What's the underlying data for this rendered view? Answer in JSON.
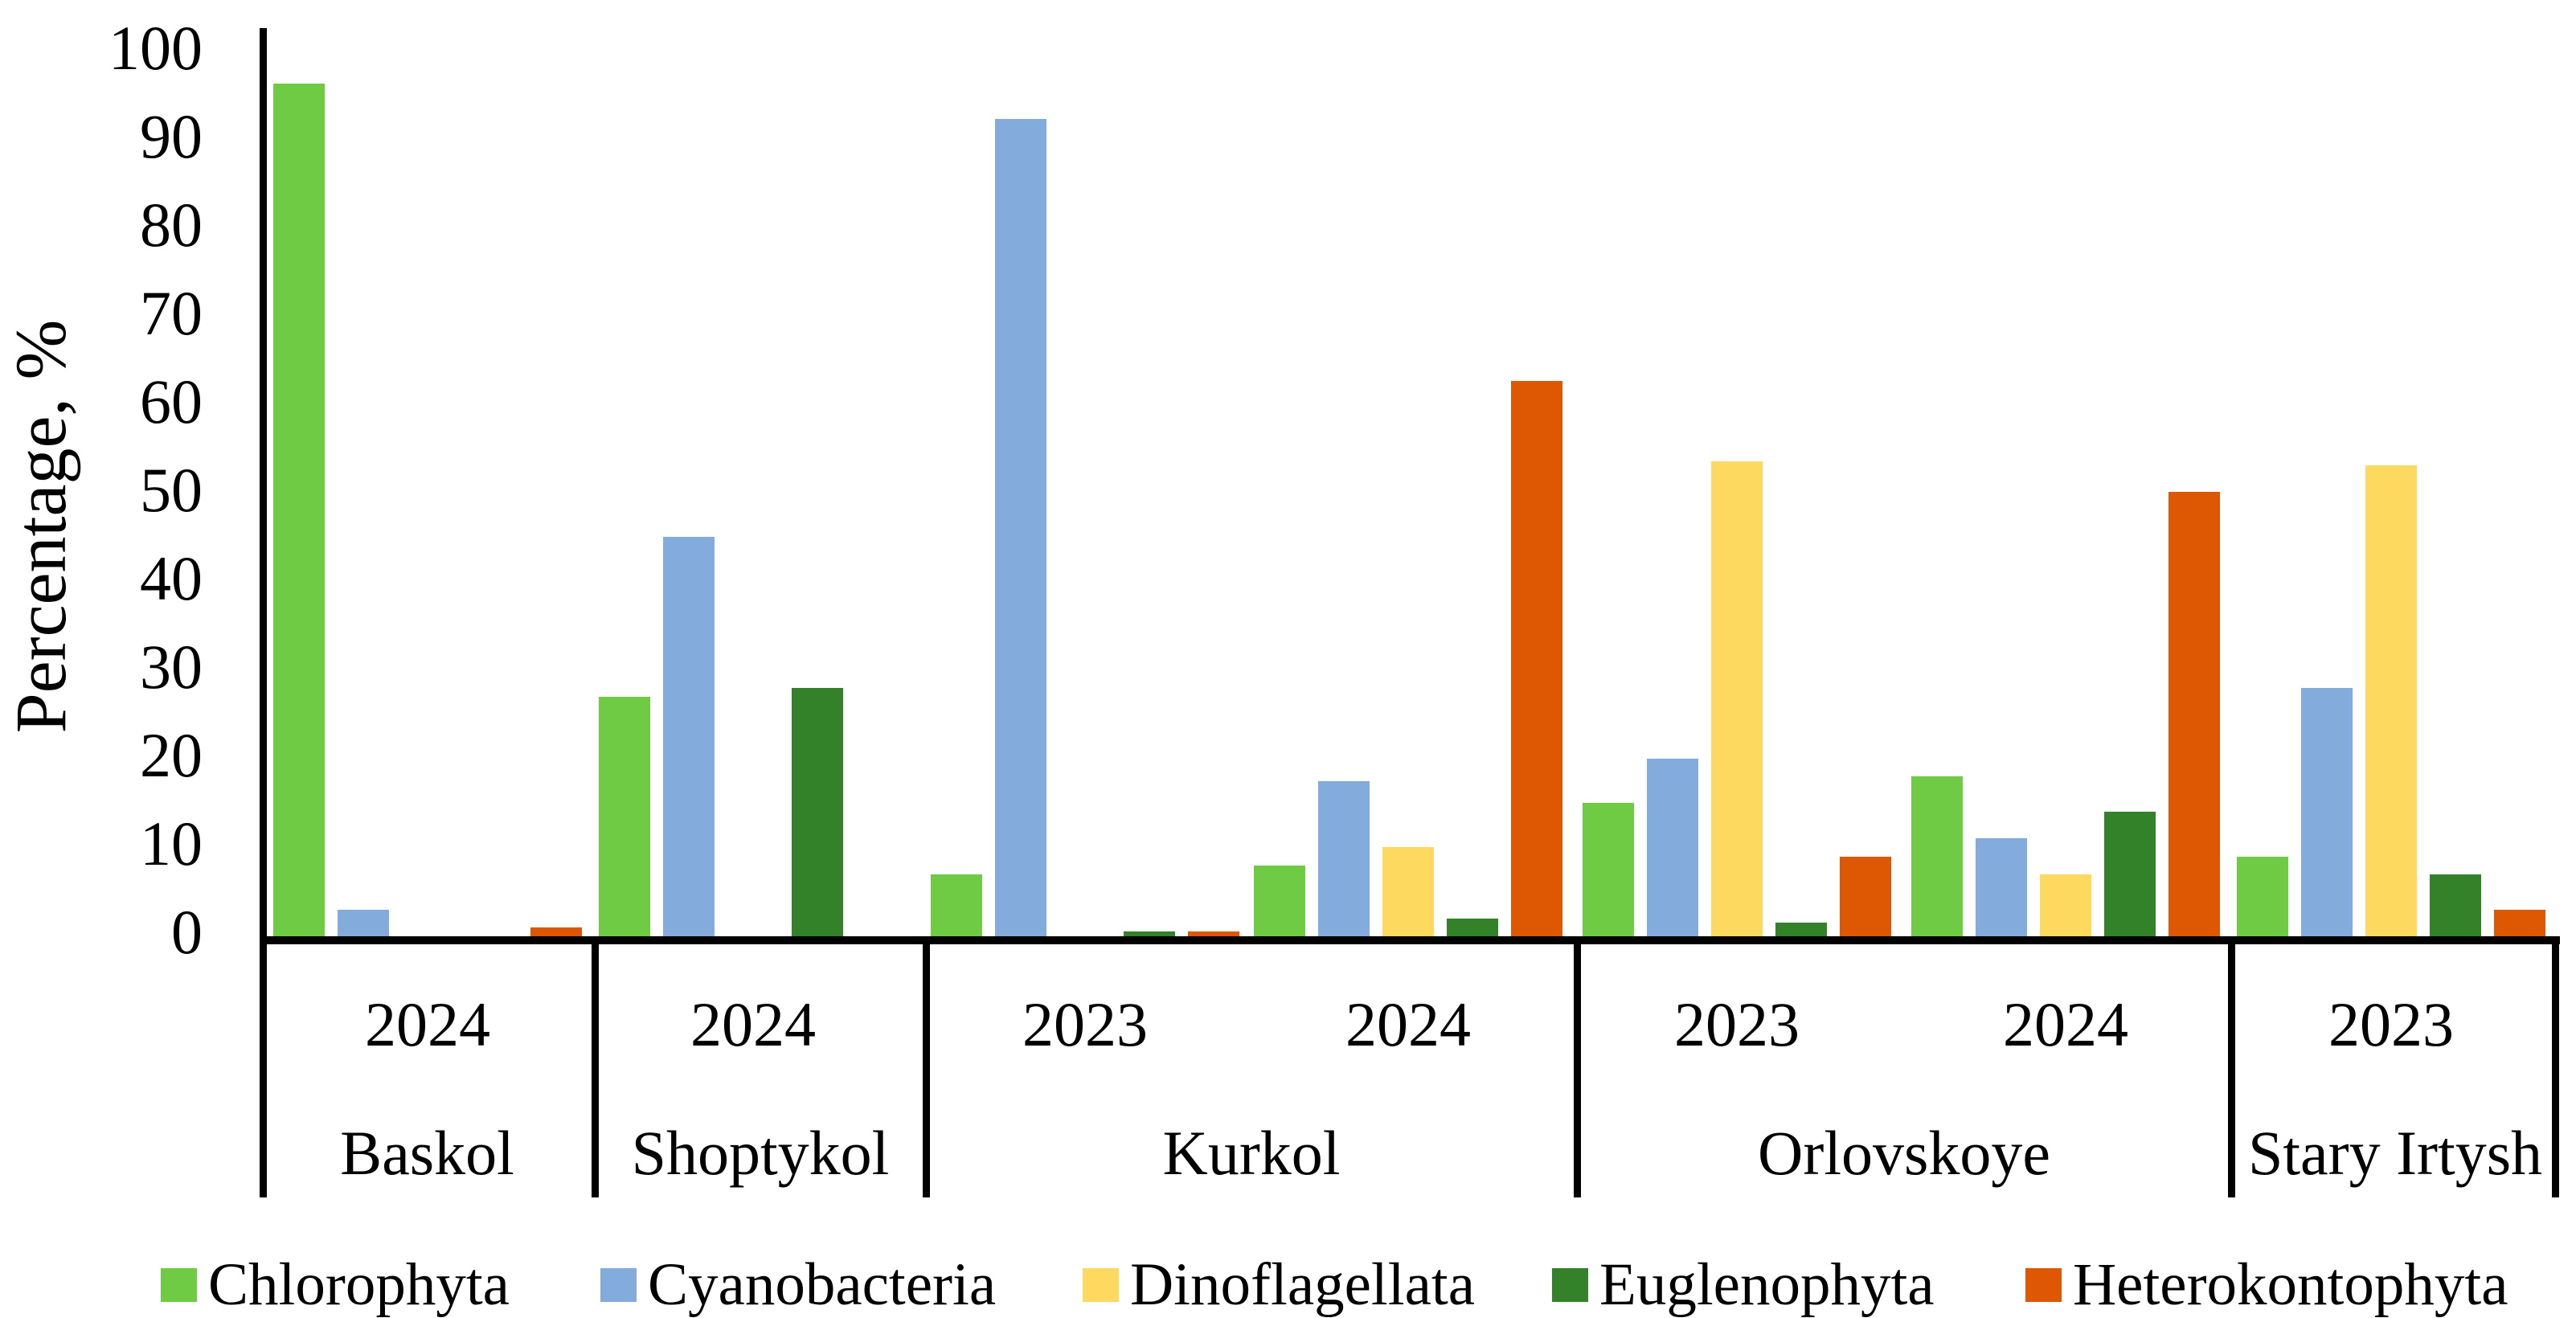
{
  "chart_data": {
    "type": "bar",
    "title": "",
    "ylabel": "Percentage, %",
    "ylim": [
      0,
      100
    ],
    "y_ticks": [
      "0",
      "10",
      "20",
      "30",
      "40",
      "50",
      "60",
      "70",
      "80",
      "90",
      "100"
    ],
    "grid": false,
    "legend_position": "bottom",
    "columns": [
      {
        "lake": "Baskol",
        "year": "2024"
      },
      {
        "lake": "Shoptykol",
        "year": "2024"
      },
      {
        "lake": "Kurkol",
        "year": "2023"
      },
      {
        "lake": "Kurkol",
        "year": "2024"
      },
      {
        "lake": "Orlovskoye",
        "year": "2023"
      },
      {
        "lake": "Orlovskoye",
        "year": "2024"
      },
      {
        "lake": "Stary Irtysh",
        "year": "2023"
      }
    ],
    "lakes": [
      "Baskol",
      "Shoptykol",
      "Kurkol",
      "Orlovskoye",
      "Stary Irtysh"
    ],
    "series": [
      {
        "name": "Chlorophyta",
        "color": "#6FCB44",
        "values": [
          96,
          27,
          7,
          8,
          15,
          18,
          9
        ]
      },
      {
        "name": "Cyanobacteria",
        "color": "#83ACDD",
        "values": [
          3,
          45,
          92,
          17.5,
          20,
          11,
          28
        ]
      },
      {
        "name": "Dinoflagellata",
        "color": "#FED95F",
        "values": [
          0,
          0,
          0,
          10,
          53.5,
          7,
          53
        ]
      },
      {
        "name": "Euglenophyta",
        "color": "#338229",
        "values": [
          0,
          28,
          0.5,
          2,
          1.5,
          14,
          7
        ]
      },
      {
        "name": "Heterokontophyta",
        "color": "#DE5703",
        "values": [
          1,
          0,
          0.5,
          62.5,
          9,
          50,
          3
        ]
      }
    ],
    "axis_color": "#000000"
  }
}
